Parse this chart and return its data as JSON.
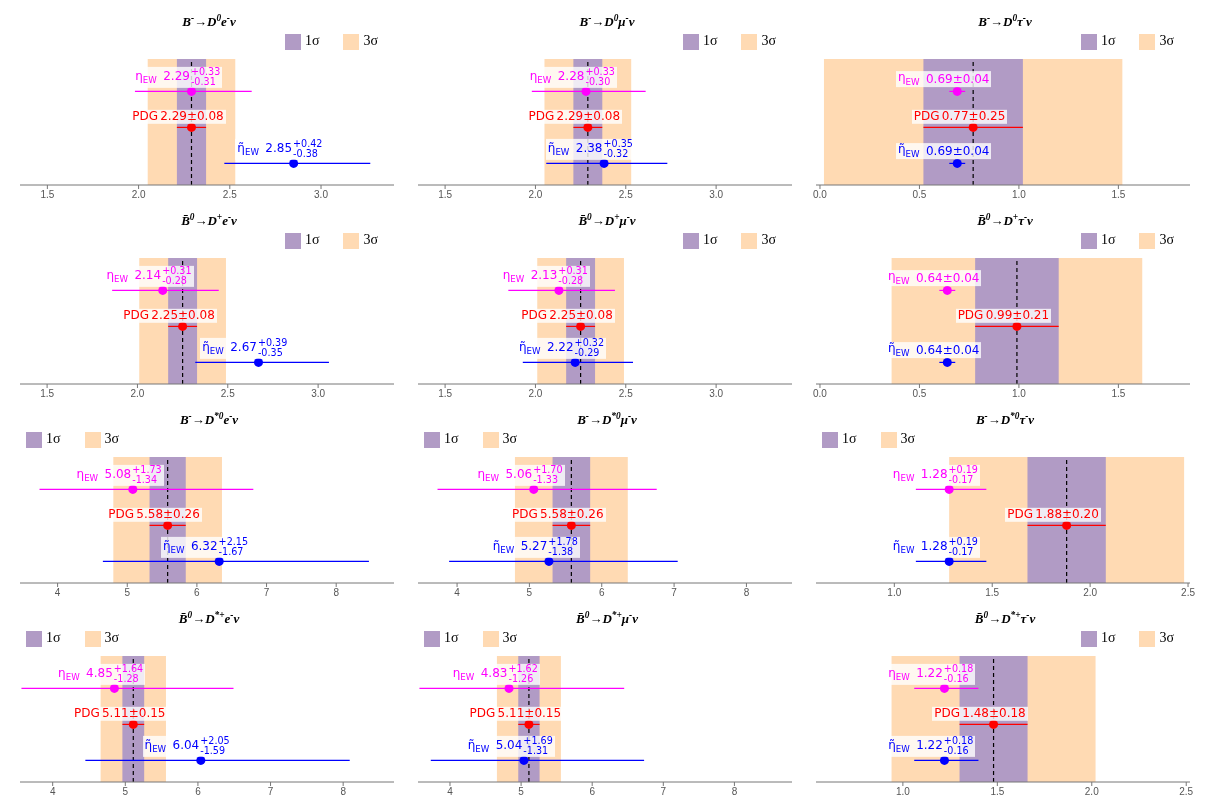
{
  "chart_data": [
    {
      "type": "scatter",
      "orientation": "horizontal",
      "marker": "circle",
      "tick_labels": "x",
      "legend": "top right",
      "title": "B$^{-}$→D$^{0}$e$^{-}$ν",
      "categories": [
        null,
        null,
        null
      ],
      "xlim": [
        1.35,
        3.4
      ],
      "xticks": [
        1.5,
        {
          "value": 2,
          "label": "2.0"
        },
        2.5,
        {
          "value": 3,
          "label": "3.0"
        }
      ],
      "series": [
        {
          "name": "η$_{EW}$",
          "color": "#ff00ff",
          "values": [
            2.29,
            null,
            null
          ],
          "errors": [
            [
              1.98,
              2.62
            ],
            null,
            null
          ],
          "value_labels": [
            "2.29$^{+0.33}$$_{-0.31}$",
            null,
            null
          ]
        },
        {
          "name": "PDG",
          "color": "#ff0000",
          "values": [
            null,
            2.29,
            null
          ],
          "errors": [
            null,
            [
              2.21,
              2.37
            ],
            null
          ],
          "value_labels": [
            null,
            "2.29±0.08",
            null
          ]
        },
        {
          "name": "η̃$_{EW}$",
          "color": "#0000ff",
          "values": [
            null,
            null,
            2.85
          ],
          "errors": [
            null,
            null,
            [
              2.47,
              3.27
            ]
          ],
          "value_labels": [
            null,
            null,
            "2.85$^{+0.42}$$_{-0.38}$"
          ]
        }
      ],
      "bands": [
        {
          "axis": "x",
          "from": 2.21,
          "to": 2.37,
          "label": "1σ",
          "color": "#b19bc5"
        },
        {
          "axis": "x",
          "from": 2.05,
          "to": 2.53,
          "label": "3σ",
          "color": "#ffdab3"
        }
      ],
      "ref_lines": [
        {
          "axis": "x",
          "value": 2.29,
          "color": "#000000",
          "line_style": "dashed"
        }
      ]
    },
    {
      "type": "scatter",
      "orientation": "horizontal",
      "marker": "circle",
      "tick_labels": "x",
      "legend": "top right",
      "title": "B$^{-}$→D$^{0}$μ$^{-}$ν",
      "categories": [
        null,
        null,
        null
      ],
      "xlim": [
        1.35,
        3.42
      ],
      "xticks": [
        1.5,
        {
          "value": 2,
          "label": "2.0"
        },
        2.5,
        {
          "value": 3,
          "label": "3.0"
        }
      ],
      "series": [
        {
          "name": "η$_{EW}$",
          "color": "#ff00ff",
          "values": [
            2.28,
            null,
            null
          ],
          "errors": [
            [
              1.98,
              2.61
            ],
            null,
            null
          ],
          "value_labels": [
            "2.28$^{+0.33}$$_{-0.30}$",
            null,
            null
          ]
        },
        {
          "name": "PDG",
          "color": "#ff0000",
          "values": [
            null,
            2.29,
            null
          ],
          "errors": [
            null,
            [
              2.21,
              2.37
            ],
            null
          ],
          "value_labels": [
            null,
            "2.29±0.08",
            null
          ]
        },
        {
          "name": "η̃$_{EW}$",
          "color": "#0000ff",
          "values": [
            null,
            null,
            2.38
          ],
          "errors": [
            null,
            null,
            [
              2.06,
              2.73
            ]
          ],
          "value_labels": [
            null,
            null,
            "2.38$^{+0.35}$$_{-0.32}$"
          ]
        }
      ],
      "bands": [
        {
          "axis": "x",
          "from": 2.21,
          "to": 2.37,
          "label": "1σ",
          "color": "#b19bc5"
        },
        {
          "axis": "x",
          "from": 2.05,
          "to": 2.53,
          "label": "3σ",
          "color": "#ffdab3"
        }
      ],
      "ref_lines": [
        {
          "axis": "x",
          "value": 2.29,
          "color": "#000000",
          "line_style": "dashed"
        }
      ]
    },
    {
      "type": "scatter",
      "orientation": "horizontal",
      "marker": "circle",
      "tick_labels": "x",
      "legend": "top right",
      "title": "B$^{-}$→D$^{0}$τ$^{-}$ν",
      "categories": [
        null,
        null,
        null
      ],
      "xlim": [
        -0.02,
        1.86
      ],
      "xticks": [
        {
          "value": 0,
          "label": "0.0"
        },
        0.5,
        {
          "value": 1,
          "label": "1.0"
        },
        1.5
      ],
      "series": [
        {
          "name": "η$_{EW}$",
          "color": "#ff00ff",
          "values": [
            0.69,
            null,
            null
          ],
          "errors": [
            [
              0.65,
              0.73
            ],
            null,
            null
          ],
          "value_labels": [
            "0.69±0.04",
            null,
            null
          ]
        },
        {
          "name": "PDG",
          "color": "#ff0000",
          "values": [
            null,
            0.77,
            null
          ],
          "errors": [
            null,
            [
              0.52,
              1.02
            ],
            null
          ],
          "value_labels": [
            null,
            "0.77±0.25",
            null
          ]
        },
        {
          "name": "η̃$_{EW}$",
          "color": "#0000ff",
          "values": [
            null,
            null,
            0.69
          ],
          "errors": [
            null,
            null,
            [
              0.65,
              0.73
            ]
          ],
          "value_labels": [
            null,
            null,
            "0.69±0.04"
          ]
        }
      ],
      "bands": [
        {
          "axis": "x",
          "from": 0.52,
          "to": 1.02,
          "label": "1σ",
          "color": "#b19bc5"
        },
        {
          "axis": "x",
          "from": 0.02,
          "to": 1.52,
          "label": "3σ",
          "color": "#ffdab3"
        }
      ],
      "ref_lines": [
        {
          "axis": "x",
          "value": 0.77,
          "color": "#000000",
          "line_style": "dashed"
        }
      ]
    },
    {
      "type": "scatter",
      "orientation": "horizontal",
      "marker": "circle",
      "tick_labels": "x",
      "legend": "top right",
      "title": "B̄$^{0}$→D$^{+}$e$^{-}$ν",
      "categories": [
        null,
        null,
        null
      ],
      "xlim": [
        1.35,
        3.42
      ],
      "xticks": [
        1.5,
        {
          "value": 2,
          "label": "2.0"
        },
        2.5,
        {
          "value": 3,
          "label": "3.0"
        }
      ],
      "series": [
        {
          "name": "η$_{EW}$",
          "color": "#ff00ff",
          "values": [
            2.14,
            null,
            null
          ],
          "errors": [
            [
              1.86,
              2.45
            ],
            null,
            null
          ],
          "value_labels": [
            "2.14$^{+0.31}$$_{-0.28}$",
            null,
            null
          ]
        },
        {
          "name": "PDG",
          "color": "#ff0000",
          "values": [
            null,
            2.25,
            null
          ],
          "errors": [
            null,
            [
              2.17,
              2.33
            ],
            null
          ],
          "value_labels": [
            null,
            "2.25±0.08",
            null
          ]
        },
        {
          "name": "η̃$_{EW}$",
          "color": "#0000ff",
          "values": [
            null,
            null,
            2.67
          ],
          "errors": [
            null,
            null,
            [
              2.32,
              3.06
            ]
          ],
          "value_labels": [
            null,
            null,
            "2.67$^{+0.39}$$_{-0.35}$"
          ]
        }
      ],
      "bands": [
        {
          "axis": "x",
          "from": 2.17,
          "to": 2.33,
          "label": "1σ",
          "color": "#b19bc5"
        },
        {
          "axis": "x",
          "from": 2.01,
          "to": 2.49,
          "label": "3σ",
          "color": "#ffdab3"
        }
      ],
      "ref_lines": [
        {
          "axis": "x",
          "value": 2.25,
          "color": "#000000",
          "line_style": "dashed"
        }
      ]
    },
    {
      "type": "scatter",
      "orientation": "horizontal",
      "marker": "circle",
      "tick_labels": "x",
      "legend": "top right",
      "title": "B̄$^{0}$→D$^{+}$μ$^{-}$ν",
      "categories": [
        null,
        null,
        null
      ],
      "xlim": [
        1.35,
        3.42
      ],
      "xticks": [
        1.5,
        {
          "value": 2,
          "label": "2.0"
        },
        2.5,
        {
          "value": 3,
          "label": "3.0"
        }
      ],
      "series": [
        {
          "name": "η$_{EW}$",
          "color": "#ff00ff",
          "values": [
            2.13,
            null,
            null
          ],
          "errors": [
            [
              1.85,
              2.44
            ],
            null,
            null
          ],
          "value_labels": [
            "2.13$^{+0.31}$$_{-0.28}$",
            null,
            null
          ]
        },
        {
          "name": "PDG",
          "color": "#ff0000",
          "values": [
            null,
            2.25,
            null
          ],
          "errors": [
            null,
            [
              2.17,
              2.33
            ],
            null
          ],
          "value_labels": [
            null,
            "2.25±0.08",
            null
          ]
        },
        {
          "name": "η̃$_{EW}$",
          "color": "#0000ff",
          "values": [
            null,
            null,
            2.22
          ],
          "errors": [
            null,
            null,
            [
              1.93,
              2.54
            ]
          ],
          "value_labels": [
            null,
            null,
            "2.22$^{+0.32}$$_{-0.29}$"
          ]
        }
      ],
      "bands": [
        {
          "axis": "x",
          "from": 2.17,
          "to": 2.33,
          "label": "1σ",
          "color": "#b19bc5"
        },
        {
          "axis": "x",
          "from": 2.01,
          "to": 2.49,
          "label": "3σ",
          "color": "#ffdab3"
        }
      ],
      "ref_lines": [
        {
          "axis": "x",
          "value": 2.25,
          "color": "#000000",
          "line_style": "dashed"
        }
      ]
    },
    {
      "type": "scatter",
      "orientation": "horizontal",
      "marker": "circle",
      "tick_labels": "x",
      "legend": "top right",
      "title": "B̄$^{0}$→D$^{+}$τ$^{-}$ν",
      "categories": [
        null,
        null,
        null
      ],
      "xlim": [
        -0.02,
        1.86
      ],
      "xticks": [
        {
          "value": 0,
          "label": "0.0"
        },
        0.5,
        {
          "value": 1,
          "label": "1.0"
        },
        1.5
      ],
      "series": [
        {
          "name": "η$_{EW}$",
          "color": "#ff00ff",
          "values": [
            0.64,
            null,
            null
          ],
          "errors": [
            [
              0.6,
              0.68
            ],
            null,
            null
          ],
          "value_labels": [
            "0.64±0.04",
            null,
            null
          ]
        },
        {
          "name": "PDG",
          "color": "#ff0000",
          "values": [
            null,
            0.99,
            null
          ],
          "errors": [
            null,
            [
              0.78,
              1.2
            ],
            null
          ],
          "value_labels": [
            null,
            "0.99±0.21",
            null
          ]
        },
        {
          "name": "η̃$_{EW}$",
          "color": "#0000ff",
          "values": [
            null,
            null,
            0.64
          ],
          "errors": [
            null,
            null,
            [
              0.6,
              0.68
            ]
          ],
          "value_labels": [
            null,
            null,
            "0.64±0.04"
          ]
        }
      ],
      "bands": [
        {
          "axis": "x",
          "from": 0.78,
          "to": 1.2,
          "label": "1σ",
          "color": "#b19bc5"
        },
        {
          "axis": "x",
          "from": 0.36,
          "to": 1.62,
          "label": "3σ",
          "color": "#ffdab3"
        }
      ],
      "ref_lines": [
        {
          "axis": "x",
          "value": 0.99,
          "color": "#000000",
          "line_style": "dashed"
        }
      ]
    },
    {
      "type": "scatter",
      "orientation": "horizontal",
      "marker": "circle",
      "tick_labels": "x",
      "legend": "top left",
      "title": "B$^{-}$→D$^{*0}$e$^{-}$ν",
      "categories": [
        null,
        null,
        null
      ],
      "xlim": [
        3.46,
        8.83
      ],
      "xticks": [
        4,
        5,
        6,
        7,
        8
      ],
      "series": [
        {
          "name": "η$_{EW}$",
          "color": "#ff00ff",
          "values": [
            5.08,
            null,
            null
          ],
          "errors": [
            [
              3.74,
              6.81
            ],
            null,
            null
          ],
          "value_labels": [
            "5.08$^{+1.73}$$_{-1.34}$",
            null,
            null
          ]
        },
        {
          "name": "PDG",
          "color": "#ff0000",
          "values": [
            null,
            5.58,
            null
          ],
          "errors": [
            null,
            [
              5.32,
              5.84
            ],
            null
          ],
          "value_labels": [
            null,
            "5.58±0.26",
            null
          ]
        },
        {
          "name": "η̃$_{EW}$",
          "color": "#0000ff",
          "values": [
            null,
            null,
            6.32
          ],
          "errors": [
            null,
            null,
            [
              4.65,
              8.47
            ]
          ],
          "value_labels": [
            null,
            null,
            "6.32$^{+2.15}$$_{-1.67}$"
          ]
        }
      ],
      "bands": [
        {
          "axis": "x",
          "from": 5.32,
          "to": 5.84,
          "label": "1σ",
          "color": "#b19bc5"
        },
        {
          "axis": "x",
          "from": 4.8,
          "to": 6.36,
          "label": "3σ",
          "color": "#ffdab3"
        }
      ],
      "ref_lines": [
        {
          "axis": "x",
          "value": 5.58,
          "color": "#000000",
          "line_style": "dashed"
        }
      ]
    },
    {
      "type": "scatter",
      "orientation": "horizontal",
      "marker": "circle",
      "tick_labels": "x",
      "legend": "top left",
      "title": "B$^{-}$→D$^{*0}$μ$^{-}$ν",
      "categories": [
        null,
        null,
        null
      ],
      "xlim": [
        3.46,
        8.63
      ],
      "xticks": [
        4,
        5,
        6,
        7,
        8
      ],
      "series": [
        {
          "name": "η$_{EW}$",
          "color": "#ff00ff",
          "values": [
            5.06,
            null,
            null
          ],
          "errors": [
            [
              3.73,
              6.76
            ],
            null,
            null
          ],
          "value_labels": [
            "5.06$^{+1.70}$$_{-1.33}$",
            null,
            null
          ]
        },
        {
          "name": "PDG",
          "color": "#ff0000",
          "values": [
            null,
            5.58,
            null
          ],
          "errors": [
            null,
            [
              5.32,
              5.84
            ],
            null
          ],
          "value_labels": [
            null,
            "5.58±0.26",
            null
          ]
        },
        {
          "name": "η̃$_{EW}$",
          "color": "#0000ff",
          "values": [
            null,
            null,
            5.27
          ],
          "errors": [
            null,
            null,
            [
              3.89,
              7.05
            ]
          ],
          "value_labels": [
            null,
            null,
            "5.27$^{+1.78}$$_{-1.38}$"
          ]
        }
      ],
      "bands": [
        {
          "axis": "x",
          "from": 5.32,
          "to": 5.84,
          "label": "1σ",
          "color": "#b19bc5"
        },
        {
          "axis": "x",
          "from": 4.8,
          "to": 6.36,
          "label": "3σ",
          "color": "#ffdab3"
        }
      ],
      "ref_lines": [
        {
          "axis": "x",
          "value": 5.58,
          "color": "#000000",
          "line_style": "dashed"
        }
      ]
    },
    {
      "type": "scatter",
      "orientation": "horizontal",
      "marker": "circle",
      "tick_labels": "x",
      "legend": "top left",
      "title": "B$^{-}$→D$^{*0}$τ$^{-}$ν",
      "categories": [
        null,
        null,
        null
      ],
      "xlim": [
        0.6,
        2.51
      ],
      "xticks": [
        {
          "value": 1,
          "label": "1.0"
        },
        1.5,
        {
          "value": 2,
          "label": "2.0"
        },
        2.5
      ],
      "series": [
        {
          "name": "η$_{EW}$",
          "color": "#ff00ff",
          "values": [
            1.28,
            null,
            null
          ],
          "errors": [
            [
              1.11,
              1.47
            ],
            null,
            null
          ],
          "value_labels": [
            "1.28$^{+0.19}$$_{-0.17}$",
            null,
            null
          ]
        },
        {
          "name": "PDG",
          "color": "#ff0000",
          "values": [
            null,
            1.88,
            null
          ],
          "errors": [
            null,
            [
              1.68,
              2.08
            ],
            null
          ],
          "value_labels": [
            null,
            "1.88±0.20",
            null
          ]
        },
        {
          "name": "η̃$_{EW}$",
          "color": "#0000ff",
          "values": [
            null,
            null,
            1.28
          ],
          "errors": [
            null,
            null,
            [
              1.11,
              1.47
            ]
          ],
          "value_labels": [
            null,
            null,
            "1.28$^{+0.19}$$_{-0.17}$"
          ]
        }
      ],
      "bands": [
        {
          "axis": "x",
          "from": 1.68,
          "to": 2.08,
          "label": "1σ",
          "color": "#b19bc5"
        },
        {
          "axis": "x",
          "from": 1.28,
          "to": 2.48,
          "label": "3σ",
          "color": "#ffdab3"
        }
      ],
      "ref_lines": [
        {
          "axis": "x",
          "value": 1.88,
          "color": "#000000",
          "line_style": "dashed"
        }
      ]
    },
    {
      "type": "scatter",
      "orientation": "horizontal",
      "marker": "circle",
      "tick_labels": "x",
      "legend": "top left",
      "title": "B̄$^{0}$→D$^{*+}$e$^{-}$ν",
      "categories": [
        null,
        null,
        null
      ],
      "xlim": [
        3.55,
        8.7
      ],
      "xticks": [
        4,
        5,
        6,
        7,
        8
      ],
      "series": [
        {
          "name": "η$_{EW}$",
          "color": "#ff00ff",
          "values": [
            4.85,
            null,
            null
          ],
          "errors": [
            [
              3.57,
              6.49
            ],
            null,
            null
          ],
          "value_labels": [
            "4.85$^{+1.64}$$_{-1.28}$",
            null,
            null
          ]
        },
        {
          "name": "PDG",
          "color": "#ff0000",
          "values": [
            null,
            5.11,
            null
          ],
          "errors": [
            null,
            [
              4.96,
              5.26
            ],
            null
          ],
          "value_labels": [
            null,
            "5.11±0.15",
            null
          ]
        },
        {
          "name": "η̃$_{EW}$",
          "color": "#0000ff",
          "values": [
            null,
            null,
            6.04
          ],
          "errors": [
            null,
            null,
            [
              4.45,
              8.09
            ]
          ],
          "value_labels": [
            null,
            null,
            "6.04$^{+2.05}$$_{-1.59}$"
          ]
        }
      ],
      "bands": [
        {
          "axis": "x",
          "from": 4.96,
          "to": 5.26,
          "label": "1σ",
          "color": "#b19bc5"
        },
        {
          "axis": "x",
          "from": 4.66,
          "to": 5.56,
          "label": "3σ",
          "color": "#ffdab3"
        }
      ],
      "ref_lines": [
        {
          "axis": "x",
          "value": 5.11,
          "color": "#000000",
          "line_style": "dashed"
        }
      ]
    },
    {
      "type": "scatter",
      "orientation": "horizontal",
      "marker": "circle",
      "tick_labels": "x",
      "legend": "top left",
      "title": "B̄$^{0}$→D$^{*+}$μ$^{-}$ν",
      "categories": [
        null,
        null,
        null
      ],
      "xlim": [
        3.55,
        8.81
      ],
      "xticks": [
        4,
        5,
        6,
        7,
        8
      ],
      "series": [
        {
          "name": "η$_{EW}$",
          "color": "#ff00ff",
          "values": [
            4.83,
            null,
            null
          ],
          "errors": [
            [
              3.57,
              6.45
            ],
            null,
            null
          ],
          "value_labels": [
            "4.83$^{+1.62}$$_{-1.26}$",
            null,
            null
          ]
        },
        {
          "name": "PDG",
          "color": "#ff0000",
          "values": [
            null,
            5.11,
            null
          ],
          "errors": [
            null,
            [
              4.96,
              5.26
            ],
            null
          ],
          "value_labels": [
            null,
            "5.11±0.15",
            null
          ]
        },
        {
          "name": "η̃$_{EW}$",
          "color": "#0000ff",
          "values": [
            null,
            null,
            5.04
          ],
          "errors": [
            null,
            null,
            [
              3.73,
              6.73
            ]
          ],
          "value_labels": [
            null,
            null,
            "5.04$^{+1.69}$$_{-1.31}$"
          ]
        }
      ],
      "bands": [
        {
          "axis": "x",
          "from": 4.96,
          "to": 5.26,
          "label": "1σ",
          "color": "#b19bc5"
        },
        {
          "axis": "x",
          "from": 4.66,
          "to": 5.56,
          "label": "3σ",
          "color": "#ffdab3"
        }
      ],
      "ref_lines": [
        {
          "axis": "x",
          "value": 5.11,
          "color": "#000000",
          "line_style": "dashed"
        }
      ]
    },
    {
      "type": "scatter",
      "orientation": "horizontal",
      "marker": "circle",
      "tick_labels": "x",
      "legend": "top right",
      "title": "B̄$^{0}$→D$^{*+}$τ$^{-}$ν",
      "categories": [
        null,
        null,
        null
      ],
      "xlim": [
        0.54,
        2.52
      ],
      "xticks": [
        {
          "value": 1,
          "label": "1.0"
        },
        1.5,
        {
          "value": 2,
          "label": "2.0"
        },
        2.5
      ],
      "series": [
        {
          "name": "η$_{EW}$",
          "color": "#ff00ff",
          "values": [
            1.22,
            null,
            null
          ],
          "errors": [
            [
              1.06,
              1.4
            ],
            null,
            null
          ],
          "value_labels": [
            "1.22$^{+0.18}$$_{-0.16}$",
            null,
            null
          ]
        },
        {
          "name": "PDG",
          "color": "#ff0000",
          "values": [
            null,
            1.48,
            null
          ],
          "errors": [
            null,
            [
              1.3,
              1.66
            ],
            null
          ],
          "value_labels": [
            null,
            "1.48±0.18",
            null
          ]
        },
        {
          "name": "η̃$_{EW}$",
          "color": "#0000ff",
          "values": [
            null,
            null,
            1.22
          ],
          "errors": [
            null,
            null,
            [
              1.06,
              1.4
            ]
          ],
          "value_labels": [
            null,
            null,
            "1.22$^{+0.18}$$_{-0.16}$"
          ]
        }
      ],
      "bands": [
        {
          "axis": "x",
          "from": 1.3,
          "to": 1.66,
          "label": "1σ",
          "color": "#b19bc5"
        },
        {
          "axis": "x",
          "from": 0.94,
          "to": 2.02,
          "label": "3σ",
          "color": "#ffdab3"
        }
      ],
      "ref_lines": [
        {
          "axis": "x",
          "value": 1.48,
          "color": "#000000",
          "line_style": "dashed"
        }
      ]
    }
  ]
}
